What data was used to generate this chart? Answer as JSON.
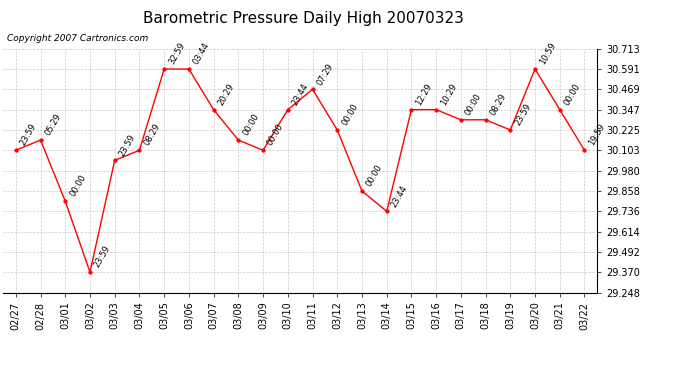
{
  "title": "Barometric Pressure Daily High 20070323",
  "copyright": "Copyright 2007 Cartronics.com",
  "x_labels": [
    "02/27",
    "02/28",
    "03/01",
    "03/02",
    "03/03",
    "03/04",
    "03/05",
    "03/06",
    "03/07",
    "03/08",
    "03/09",
    "03/10",
    "03/11",
    "03/12",
    "03/13",
    "03/14",
    "03/15",
    "03/16",
    "03/17",
    "03/18",
    "03/19",
    "03/20",
    "03/21",
    "03/22"
  ],
  "y_values": [
    30.103,
    30.164,
    29.797,
    29.37,
    30.042,
    30.103,
    30.591,
    30.591,
    30.347,
    30.164,
    30.103,
    30.347,
    30.469,
    30.225,
    29.858,
    29.736,
    30.347,
    30.347,
    30.286,
    30.286,
    30.225,
    30.591,
    30.347,
    30.103
  ],
  "point_labels": [
    "23:59",
    "05:29",
    "00:00",
    "23:59",
    "23:59",
    "08:29",
    "32:59",
    "03:44",
    "20:29",
    "00:00",
    "00:00",
    "23:44",
    "07:29",
    "00:00",
    "00:00",
    "23:44",
    "12:29",
    "10:29",
    "00:00",
    "08:29",
    "23:59",
    "10:59",
    "00:00",
    "19:59"
  ],
  "y_min": 29.248,
  "y_max": 30.713,
  "y_ticks": [
    29.248,
    29.37,
    29.492,
    29.614,
    29.736,
    29.858,
    29.98,
    30.103,
    30.225,
    30.347,
    30.469,
    30.591,
    30.713
  ],
  "line_color": "red",
  "marker_color": "red",
  "bg_color": "white",
  "grid_color": "#bbbbbb",
  "title_fontsize": 11,
  "point_label_fontsize": 6,
  "tick_fontsize": 7,
  "copyright_fontsize": 6.5
}
